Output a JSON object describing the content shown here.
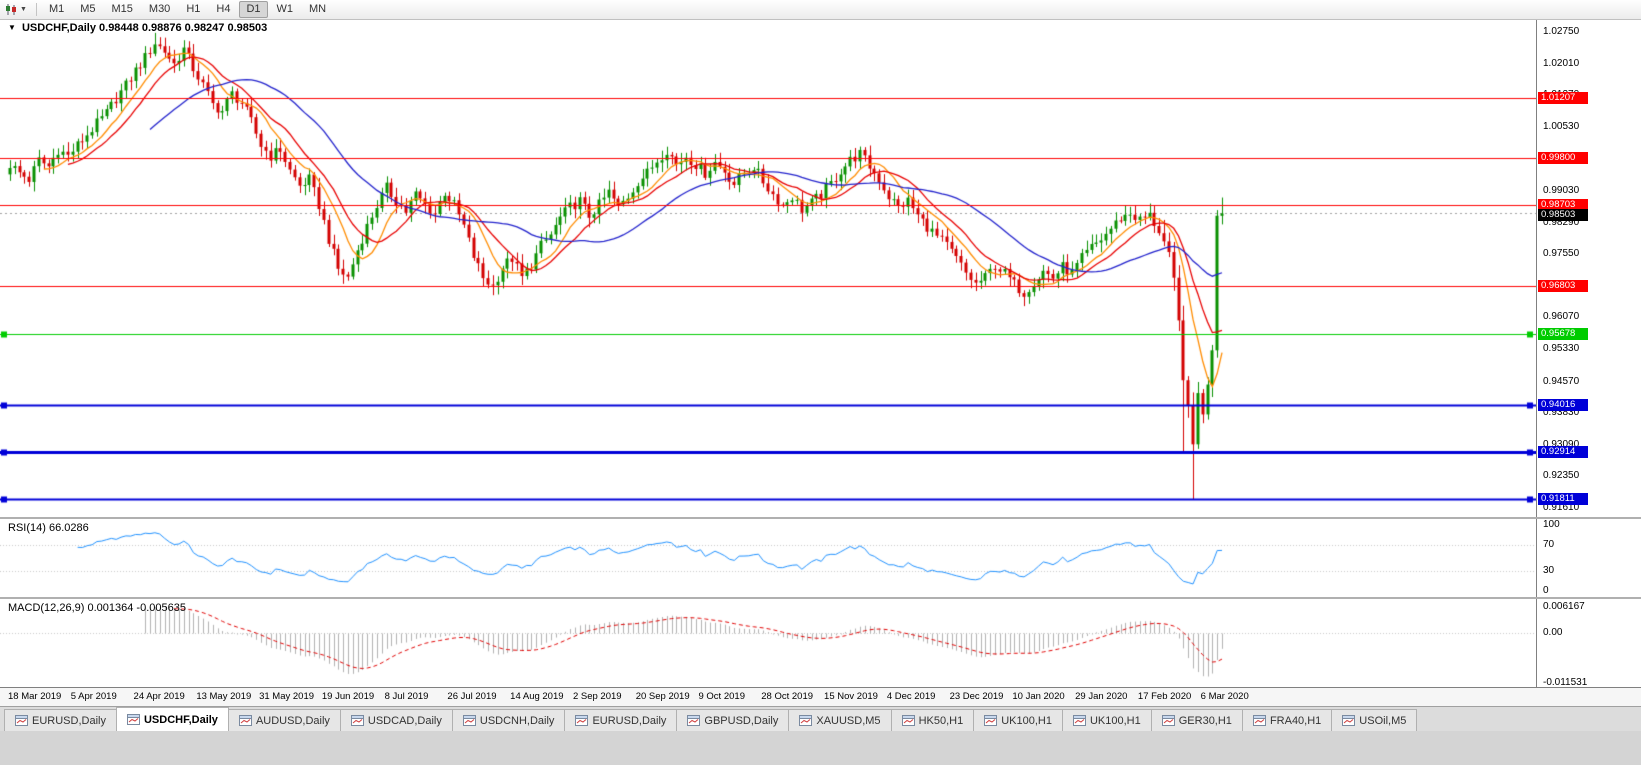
{
  "toolbar": {
    "timeframes": [
      "M1",
      "M5",
      "M15",
      "M30",
      "H1",
      "H4",
      "D1",
      "W1",
      "MN"
    ],
    "active_timeframe": "D1"
  },
  "main_chart": {
    "dropdown_marker": "▼",
    "title": "USDCHF,Daily",
    "ohlc_text": "0.98448 0.98876 0.98247 0.98503"
  },
  "rsi_panel": {
    "label": "RSI(14) 66.0286",
    "axis_labels": [
      {
        "label": "100",
        "value": 100
      },
      {
        "label": "70",
        "value": 70
      },
      {
        "label": "30",
        "value": 30
      },
      {
        "label": "0",
        "value": 0
      }
    ]
  },
  "macd_panel": {
    "label": "MACD(12,26,9) 0.001364 -0.005635",
    "axis_labels": [
      {
        "label": "0.006167",
        "value": 0.006167
      },
      {
        "label": "0.00",
        "value": 0
      },
      {
        "label": "-0.011531",
        "value": -0.011531
      }
    ]
  },
  "tabs": {
    "items": [
      "EURUSD,Daily",
      "USDCHF,Daily",
      "AUDUSD,Daily",
      "USDCAD,Daily",
      "USDCNH,Daily",
      "EURUSD,Daily",
      "GBPUSD,Daily",
      "XAUUSD,M5",
      "HK50,H1",
      "UK100,H1",
      "UK100,H1",
      "GER30,H1",
      "FRA40,H1",
      "USOil,M5"
    ],
    "active_index": 1
  },
  "chart_data": {
    "type": "candlestick",
    "symbol": "USDCHF",
    "timeframe": "Daily",
    "last_candle": {
      "open": 0.98448,
      "high": 0.98876,
      "low": 0.98247,
      "close": 0.98503
    },
    "current_price": 0.98503,
    "bid_label": "0.98503",
    "y_axis": {
      "min": 0.9161,
      "max": 1.0275,
      "ticks": [
        {
          "label": "1.02750",
          "value": 1.0275
        },
        {
          "label": "1.02010",
          "value": 1.0201
        },
        {
          "label": "1.01270",
          "value": 1.0127
        },
        {
          "label": "1.00530",
          "value": 1.0053
        },
        {
          "label": "0.99030",
          "value": 0.9903
        },
        {
          "label": "0.98290",
          "value": 0.9829
        },
        {
          "label": "0.97550",
          "value": 0.9755
        },
        {
          "label": "0.96070",
          "value": 0.9607
        },
        {
          "label": "0.95330",
          "value": 0.9533
        },
        {
          "label": "0.94570",
          "value": 0.9457
        },
        {
          "label": "0.93830",
          "value": 0.9383
        },
        {
          "label": "0.93090",
          "value": 0.9309
        },
        {
          "label": "0.92350",
          "value": 0.9235
        },
        {
          "label": "0.91610",
          "value": 0.9161
        }
      ]
    },
    "x_axis_labels": [
      "18 Mar 2019",
      "5 Apr 2019",
      "24 Apr 2019",
      "13 May 2019",
      "31 May 2019",
      "19 Jun 2019",
      "8 Jul 2019",
      "26 Jul 2019",
      "14 Aug 2019",
      "2 Sep 2019",
      "20 Sep 2019",
      "9 Oct 2019",
      "28 Oct 2019",
      "15 Nov 2019",
      "4 Dec 2019",
      "23 Dec 2019",
      "10 Jan 2020",
      "29 Jan 2020",
      "17 Feb 2020",
      "6 Mar 2020"
    ],
    "x_label_candle_step": 13,
    "horizontal_lines": [
      {
        "price": 1.01207,
        "color": "#FF0000",
        "width": 1,
        "label": "1.01207",
        "handles": false
      },
      {
        "price": 0.998,
        "color": "#FF0000",
        "width": 1,
        "label": "0.99800",
        "handles": false
      },
      {
        "price": 0.98703,
        "color": "#FF0000",
        "width": 1,
        "label": "0.98703",
        "handles": false
      },
      {
        "price": 0.96803,
        "color": "#FF0000",
        "width": 1,
        "label": "0.96803",
        "handles": false
      },
      {
        "price": 0.95678,
        "color": "#00CC00",
        "width": 1,
        "label": "0.95678",
        "handles": true
      },
      {
        "price": 0.94016,
        "color": "#0000D8",
        "width": 2,
        "label": "0.94016",
        "handles": true
      },
      {
        "price": 0.92914,
        "color": "#0000D8",
        "width": 3,
        "label": "0.92914",
        "handles": true
      },
      {
        "price": 0.91811,
        "color": "#0000D8",
        "width": 2,
        "label": "0.91811",
        "handles": true
      }
    ],
    "moving_averages": [
      {
        "period": 8,
        "color": "#FF8C00"
      },
      {
        "period": 13,
        "color": "#E80000"
      },
      {
        "period": 30,
        "color": "#2222CC"
      }
    ],
    "candles": {
      "count": 252,
      "up_color": "#089000",
      "down_color": "#D40000",
      "close_anchors": [
        [
          0,
          0.9965
        ],
        [
          2,
          0.9945
        ],
        [
          4,
          0.993
        ],
        [
          6,
          0.9975
        ],
        [
          8,
          0.996
        ],
        [
          10,
          1.0
        ],
        [
          12,
          0.9985
        ],
        [
          14,
          1.001
        ],
        [
          16,
          1.0035
        ],
        [
          18,
          1.006
        ],
        [
          20,
          1.0085
        ],
        [
          22,
          1.012
        ],
        [
          24,
          1.015
        ],
        [
          26,
          1.0185
        ],
        [
          28,
          1.0215
        ],
        [
          30,
          1.025
        ],
        [
          32,
          1.023
        ],
        [
          34,
          1.02
        ],
        [
          36,
          1.0235
        ],
        [
          38,
          1.019
        ],
        [
          40,
          1.015
        ],
        [
          42,
          1.0105
        ],
        [
          44,
          1.009
        ],
        [
          46,
          1.013
        ],
        [
          48,
          1.011
        ],
        [
          50,
          1.0065
        ],
        [
          52,
          1.001
        ],
        [
          54,
          0.9985
        ],
        [
          56,
          1.0
        ],
        [
          58,
          0.995
        ],
        [
          60,
          0.9915
        ],
        [
          62,
          0.993
        ],
        [
          64,
          0.987
        ],
        [
          66,
          0.979
        ],
        [
          68,
          0.972
        ],
        [
          70,
          0.97
        ],
        [
          72,
          0.9765
        ],
        [
          74,
          0.982
        ],
        [
          76,
          0.987
        ],
        [
          78,
          0.991
        ],
        [
          80,
          0.988
        ],
        [
          82,
          0.9855
        ],
        [
          84,
          0.9895
        ],
        [
          86,
          0.987
        ],
        [
          88,
          0.985
        ],
        [
          90,
          0.99
        ],
        [
          92,
          0.987
        ],
        [
          94,
          0.982
        ],
        [
          96,
          0.975
        ],
        [
          98,
          0.97
        ],
        [
          100,
          0.968
        ],
        [
          102,
          0.9725
        ],
        [
          104,
          0.9745
        ],
        [
          106,
          0.97
        ],
        [
          108,
          0.973
        ],
        [
          110,
          0.9775
        ],
        [
          112,
          0.98
        ],
        [
          114,
          0.984
        ],
        [
          116,
          0.9865
        ],
        [
          118,
          0.988
        ],
        [
          120,
          0.9845
        ],
        [
          122,
          0.987
        ],
        [
          124,
          0.99
        ],
        [
          126,
          0.9865
        ],
        [
          128,
          0.989
        ],
        [
          130,
          0.9925
        ],
        [
          132,
          0.9945
        ],
        [
          134,
          0.9975
        ],
        [
          136,
          1.0
        ],
        [
          138,
          0.9965
        ],
        [
          140,
          0.9985
        ],
        [
          142,
          0.9965
        ],
        [
          144,
          0.9945
        ],
        [
          146,
          0.997
        ],
        [
          148,
          0.995
        ],
        [
          150,
          0.992
        ],
        [
          152,
          0.9945
        ],
        [
          154,
          0.996
        ],
        [
          156,
          0.9925
        ],
        [
          158,
          0.9895
        ],
        [
          160,
          0.987
        ],
        [
          162,
          0.989
        ],
        [
          164,
          0.986
        ],
        [
          166,
          0.9875
        ],
        [
          168,
          0.9895
        ],
        [
          170,
          0.992
        ],
        [
          172,
          0.995
        ],
        [
          174,
          0.9975
        ],
        [
          176,
          0.999
        ],
        [
          178,
          0.996
        ],
        [
          180,
          0.993
        ],
        [
          182,
          0.989
        ],
        [
          184,
          0.9865
        ],
        [
          186,
          0.988
        ],
        [
          188,
          0.9845
        ],
        [
          190,
          0.982
        ],
        [
          192,
          0.9795
        ],
        [
          194,
          0.9775
        ],
        [
          196,
          0.9745
        ],
        [
          198,
          0.971
        ],
        [
          200,
          0.9685
        ],
        [
          202,
          0.97
        ],
        [
          204,
          0.973
        ],
        [
          206,
          0.971
        ],
        [
          208,
          0.9685
        ],
        [
          210,
          0.9665
        ],
        [
          212,
          0.969
        ],
        [
          214,
          0.9715
        ],
        [
          216,
          0.97
        ],
        [
          218,
          0.9725
        ],
        [
          220,
          0.971
        ],
        [
          222,
          0.9745
        ],
        [
          224,
          0.977
        ],
        [
          226,
          0.979
        ],
        [
          228,
          0.9815
        ],
        [
          230,
          0.984
        ],
        [
          232,
          0.985
        ],
        [
          234,
          0.9835
        ],
        [
          236,
          0.9845
        ],
        [
          238,
          0.981
        ],
        [
          240,
          0.976
        ],
        [
          241,
          0.97
        ],
        [
          242,
          0.96
        ],
        [
          243,
          0.946
        ],
        [
          244,
          0.94
        ],
        [
          245,
          0.931
        ],
        [
          246,
          0.943
        ],
        [
          247,
          0.938
        ],
        [
          248,
          0.945
        ],
        [
          249,
          0.953
        ],
        [
          250,
          0.9845
        ],
        [
          251,
          0.98503
        ]
      ],
      "spikes": [
        {
          "index": 245,
          "low": 0.9182
        },
        {
          "index": 243,
          "low": 0.9291
        },
        {
          "index": 100,
          "low": 0.9659
        },
        {
          "index": 30,
          "high": 1.0273
        }
      ]
    },
    "rsi": {
      "period": 14,
      "color": "#1E90FF",
      "levels": [
        70,
        30
      ],
      "current": 66.0286,
      "range": [
        0,
        100
      ]
    },
    "macd": {
      "fast": 12,
      "slow": 26,
      "signal": 9,
      "histogram_color": "#B2B2B2",
      "signal_color": "#E00000",
      "current_main": 0.001364,
      "current_signal": -0.005635,
      "axis_max": 0.006167,
      "axis_min": -0.011531
    }
  }
}
